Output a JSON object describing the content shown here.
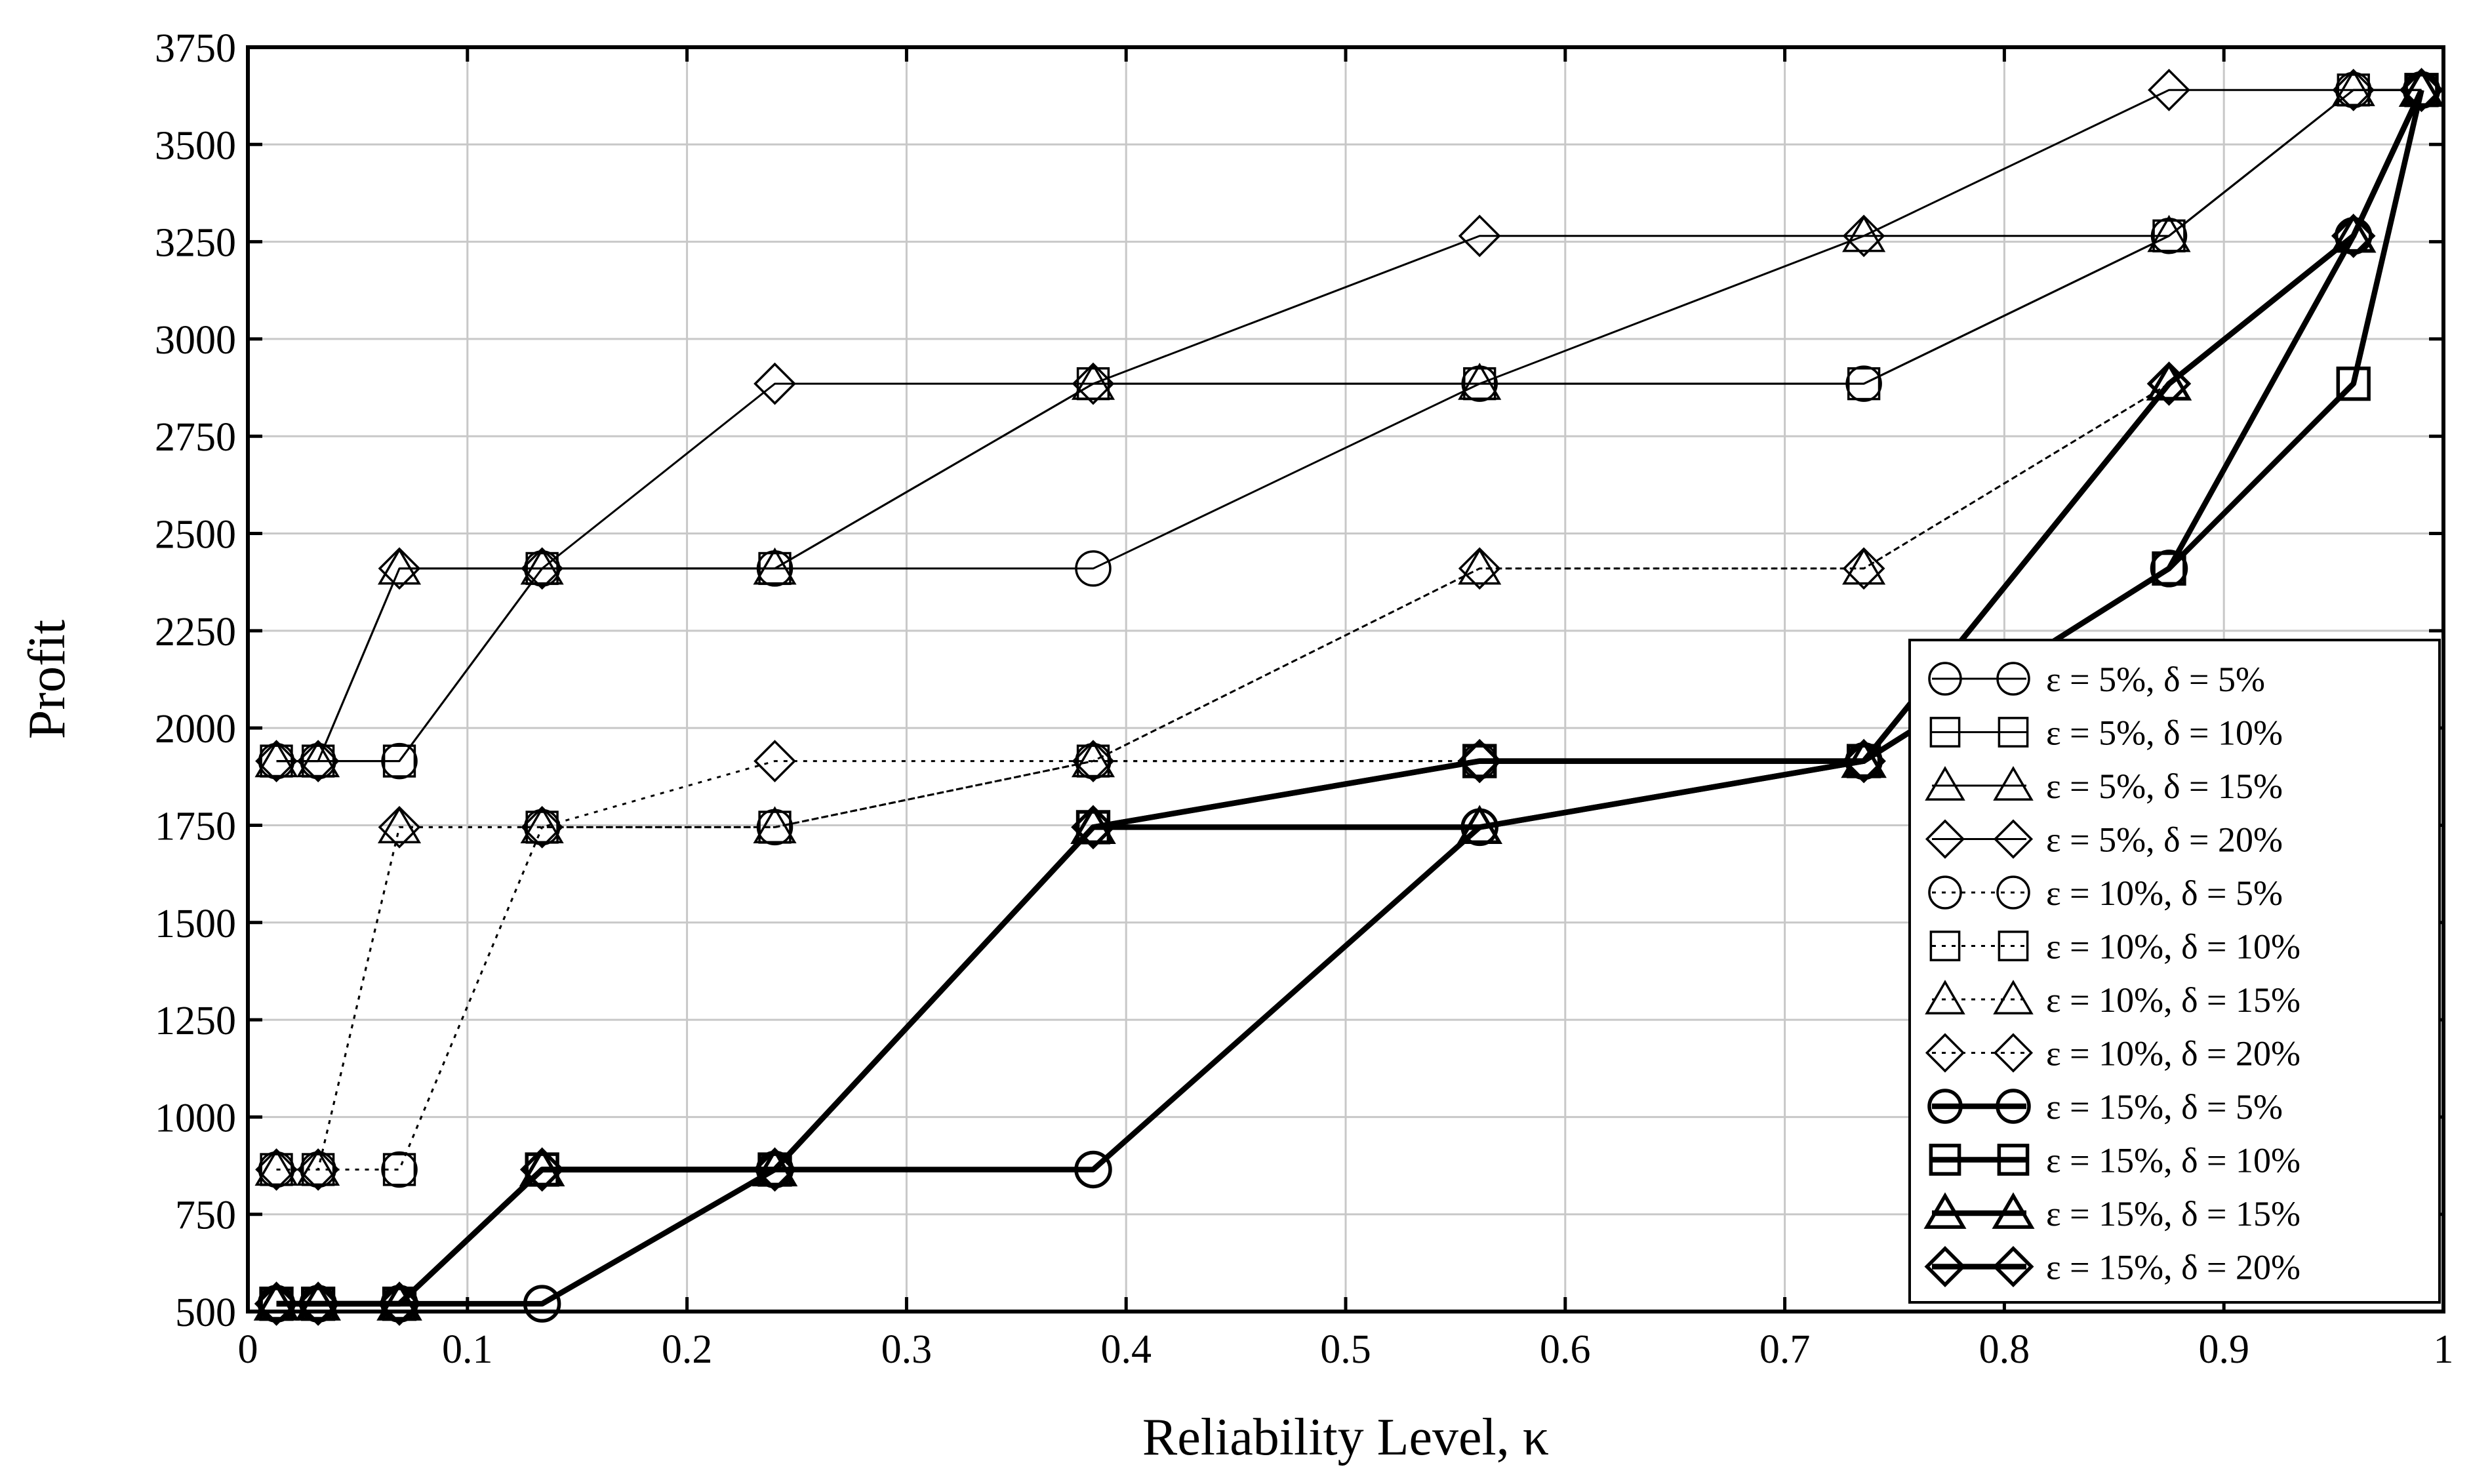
{
  "chart_data": {
    "type": "line",
    "title": "",
    "xlabel": "Reliability Level, κ",
    "ylabel": "Profit",
    "xlim": [
      0,
      1
    ],
    "ylim": [
      500,
      3750
    ],
    "xticks": [
      0,
      0.1,
      0.2,
      0.3,
      0.4,
      0.5,
      0.6,
      0.7,
      0.8,
      0.9,
      1
    ],
    "xtick_labels": [
      "0",
      "0.1",
      "0.2",
      "0.3",
      "0.4",
      "0.5",
      "0.6",
      "0.7",
      "0.8",
      "0.9",
      "1"
    ],
    "yticks": [
      500,
      750,
      1000,
      1250,
      1500,
      1750,
      2000,
      2250,
      2500,
      2750,
      3000,
      3250,
      3500,
      3750
    ],
    "ytick_labels": [
      "500",
      "750",
      "1000",
      "1250",
      "1500",
      "1750",
      "2000",
      "2250",
      "2500",
      "2750",
      "3000",
      "3250",
      "3500",
      "3750"
    ],
    "grid": true,
    "legend_position": "right",
    "series": [
      {
        "name": "ε = 5%, δ = 5%",
        "marker": "circle",
        "style": "thin",
        "x": [
          0.013,
          0.032,
          0.069,
          0.134,
          0.24,
          0.385,
          0.561,
          0.736,
          0.875,
          0.959,
          0.99
        ],
        "y": [
          1915,
          1915,
          1915,
          2410,
          2410,
          2410,
          2885,
          2885,
          3265,
          3640,
          3640
        ]
      },
      {
        "name": "ε = 5%, δ = 10%",
        "marker": "square",
        "style": "thin",
        "x": [
          0.013,
          0.032,
          0.069,
          0.134,
          0.24,
          0.385,
          0.561,
          0.736,
          0.875,
          0.959,
          0.99
        ],
        "y": [
          1915,
          1915,
          1915,
          2410,
          2410,
          2885,
          2885,
          2885,
          3265,
          3640,
          3640
        ]
      },
      {
        "name": "ε = 5%, δ = 15%",
        "marker": "triangle",
        "style": "thin",
        "x": [
          0.013,
          0.032,
          0.069,
          0.134,
          0.24,
          0.385,
          0.561,
          0.736,
          0.875,
          0.959,
          0.99
        ],
        "y": [
          1915,
          1915,
          2410,
          2410,
          2410,
          2885,
          2885,
          3265,
          3265,
          3640,
          3640
        ]
      },
      {
        "name": "ε = 5%, δ = 20%",
        "marker": "diamond",
        "style": "thin",
        "x": [
          0.013,
          0.032,
          0.069,
          0.134,
          0.24,
          0.385,
          0.561,
          0.736,
          0.875,
          0.959,
          0.99
        ],
        "y": [
          1915,
          1915,
          2410,
          2410,
          2885,
          2885,
          3265,
          3265,
          3640,
          3640,
          3640
        ]
      },
      {
        "name": "ε = 10%, δ = 5%",
        "marker": "circle",
        "style": "dotted",
        "x": [
          0.013,
          0.032,
          0.069,
          0.134,
          0.24,
          0.385,
          0.561,
          0.736,
          0.875,
          0.959,
          0.99
        ],
        "y": [
          865,
          865,
          865,
          1745,
          1745,
          1915,
          1915,
          1915,
          2410,
          3265,
          3640
        ]
      },
      {
        "name": "ε = 10%, δ = 10%",
        "marker": "square",
        "style": "dotted",
        "x": [
          0.013,
          0.032,
          0.069,
          0.134,
          0.24,
          0.385,
          0.561,
          0.736,
          0.875,
          0.959,
          0.99
        ],
        "y": [
          865,
          865,
          865,
          1745,
          1745,
          1915,
          1915,
          1915,
          2410,
          2885,
          3640
        ]
      },
      {
        "name": "ε = 10%, δ = 15%",
        "marker": "triangle",
        "style": "dotted",
        "x": [
          0.013,
          0.032,
          0.069,
          0.134,
          0.24,
          0.385,
          0.561,
          0.736,
          0.875,
          0.959,
          0.99
        ],
        "y": [
          865,
          865,
          1745,
          1745,
          1745,
          1915,
          2410,
          2410,
          2885,
          3265,
          3640
        ]
      },
      {
        "name": "ε = 10%, δ = 20%",
        "marker": "diamond",
        "style": "dotted",
        "x": [
          0.013,
          0.032,
          0.069,
          0.134,
          0.24,
          0.385,
          0.561,
          0.736,
          0.875,
          0.959,
          0.99
        ],
        "y": [
          865,
          865,
          1745,
          1745,
          1915,
          1915,
          2410,
          2410,
          2885,
          3265,
          3640
        ]
      },
      {
        "name": "ε = 15%, δ = 5%",
        "marker": "circle",
        "style": "thick",
        "x": [
          0.013,
          0.032,
          0.069,
          0.134,
          0.24,
          0.385,
          0.561,
          0.736,
          0.875,
          0.959,
          0.99
        ],
        "y": [
          520,
          520,
          520,
          520,
          865,
          865,
          1745,
          1915,
          2410,
          3265,
          3640
        ]
      },
      {
        "name": "ε = 15%, δ = 10%",
        "marker": "square",
        "style": "thick",
        "x": [
          0.013,
          0.032,
          0.069,
          0.134,
          0.24,
          0.385,
          0.561,
          0.736,
          0.875,
          0.959,
          0.99
        ],
        "y": [
          520,
          520,
          520,
          865,
          865,
          1745,
          1915,
          1915,
          2410,
          2885,
          3640
        ]
      },
      {
        "name": "ε = 15%, δ = 15%",
        "marker": "triangle",
        "style": "thick",
        "x": [
          0.013,
          0.032,
          0.069,
          0.134,
          0.24,
          0.385,
          0.561,
          0.736,
          0.875,
          0.959,
          0.99
        ],
        "y": [
          520,
          520,
          520,
          865,
          865,
          1745,
          1745,
          1915,
          2885,
          3265,
          3640
        ]
      },
      {
        "name": "ε = 15%, δ = 20%",
        "marker": "diamond",
        "style": "thick",
        "x": [
          0.013,
          0.032,
          0.069,
          0.134,
          0.24,
          0.385,
          0.561,
          0.736,
          0.875,
          0.959,
          0.99
        ],
        "y": [
          520,
          520,
          520,
          865,
          865,
          1745,
          1915,
          1915,
          2885,
          3265,
          3640
        ]
      }
    ]
  }
}
